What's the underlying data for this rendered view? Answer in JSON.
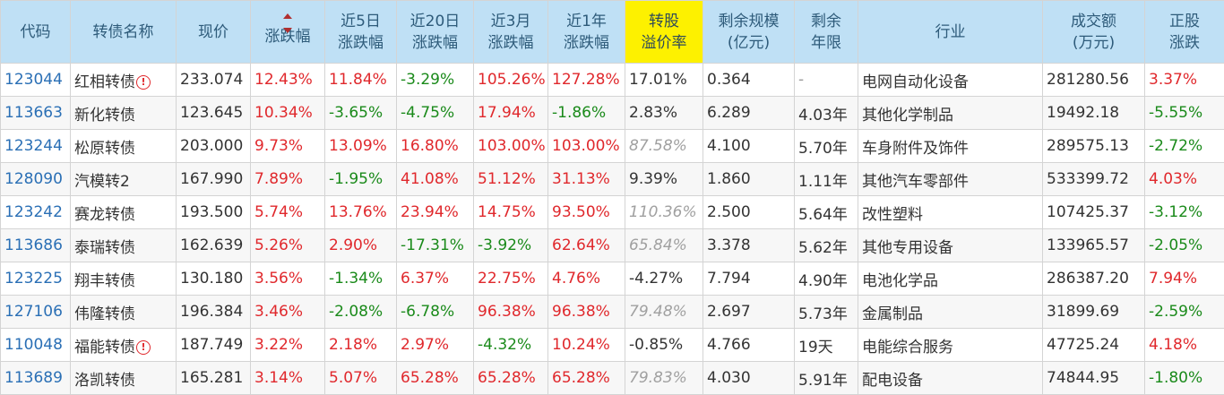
{
  "headers": [
    {
      "label": "代码",
      "lines": [
        "代码"
      ]
    },
    {
      "label": "转债名称",
      "lines": [
        "转债名称"
      ]
    },
    {
      "label": "现价",
      "lines": [
        "现价"
      ]
    },
    {
      "label": "涨跌幅",
      "lines": [
        "涨跌幅"
      ],
      "sorted": "desc"
    },
    {
      "label": "近5日涨跌幅",
      "lines": [
        "近5日",
        "涨跌幅"
      ]
    },
    {
      "label": "近20日涨跌幅",
      "lines": [
        "近20日",
        "涨跌幅"
      ]
    },
    {
      "label": "近3月涨跌幅",
      "lines": [
        "近3月",
        "涨跌幅"
      ]
    },
    {
      "label": "近1年涨跌幅",
      "lines": [
        "近1年",
        "涨跌幅"
      ]
    },
    {
      "label": "转股溢价率",
      "lines": [
        "转股",
        "溢价率"
      ],
      "highlight": "#fdf100"
    },
    {
      "label": "剩余规模(亿元)",
      "lines": [
        "剩余规模",
        "(亿元)"
      ]
    },
    {
      "label": "剩余年限",
      "lines": [
        "剩余",
        "年限"
      ]
    },
    {
      "label": "行业",
      "lines": [
        "行业"
      ]
    },
    {
      "label": "成交额(万元)",
      "lines": [
        "成交额",
        "(万元)"
      ]
    },
    {
      "label": "正股涨跌",
      "lines": [
        "正股",
        "涨跌"
      ]
    }
  ],
  "colors": {
    "up": "#e0282c",
    "down": "#1a8a1a",
    "code": "#2a6fb5",
    "muted": "#a0a0a0",
    "header_bg": "#bfe0f5"
  },
  "rows": [
    {
      "code": "123044",
      "name": "红相转债",
      "warn": true,
      "price": "233.074",
      "chg": "12.43%",
      "d5": "11.84%",
      "d20": "-3.29%",
      "m3": "105.26%",
      "y1": "127.28%",
      "premium": "17.01%",
      "premium_muted": false,
      "scale": "0.364",
      "years": "-",
      "industry": "电网自动化设备",
      "amount": "281280.56",
      "stock_chg": "3.37%"
    },
    {
      "code": "113663",
      "name": "新化转债",
      "warn": false,
      "price": "123.645",
      "chg": "10.34%",
      "d5": "-3.65%",
      "d20": "-4.75%",
      "m3": "17.94%",
      "y1": "-1.86%",
      "premium": "2.83%",
      "premium_muted": false,
      "scale": "6.289",
      "years": "4.03年",
      "industry": "其他化学制品",
      "amount": "19492.18",
      "stock_chg": "-5.55%"
    },
    {
      "code": "123244",
      "name": "松原转债",
      "warn": false,
      "price": "203.000",
      "chg": "9.73%",
      "d5": "13.09%",
      "d20": "16.80%",
      "m3": "103.00%",
      "y1": "103.00%",
      "premium": "87.58%",
      "premium_muted": true,
      "scale": "4.100",
      "years": "5.70年",
      "industry": "车身附件及饰件",
      "amount": "289575.13",
      "stock_chg": "-2.72%"
    },
    {
      "code": "128090",
      "name": "汽模转2",
      "warn": false,
      "price": "167.990",
      "chg": "7.89%",
      "d5": "-1.95%",
      "d20": "41.08%",
      "m3": "51.12%",
      "y1": "31.13%",
      "premium": "9.39%",
      "premium_muted": false,
      "scale": "1.860",
      "years": "1.11年",
      "industry": "其他汽车零部件",
      "amount": "533399.72",
      "stock_chg": "4.03%"
    },
    {
      "code": "123242",
      "name": "赛龙转债",
      "warn": false,
      "price": "193.500",
      "chg": "5.74%",
      "d5": "13.76%",
      "d20": "23.94%",
      "m3": "14.75%",
      "y1": "93.50%",
      "premium": "110.36%",
      "premium_muted": true,
      "scale": "2.500",
      "years": "5.64年",
      "industry": "改性塑料",
      "amount": "107425.37",
      "stock_chg": "-3.12%"
    },
    {
      "code": "113686",
      "name": "泰瑞转债",
      "warn": false,
      "price": "162.639",
      "chg": "5.26%",
      "d5": "2.90%",
      "d20": "-17.31%",
      "m3": "-3.92%",
      "y1": "62.64%",
      "premium": "65.84%",
      "premium_muted": true,
      "scale": "3.378",
      "years": "5.62年",
      "industry": "其他专用设备",
      "amount": "133965.57",
      "stock_chg": "-2.05%"
    },
    {
      "code": "123225",
      "name": "翔丰转债",
      "warn": false,
      "price": "130.180",
      "chg": "3.56%",
      "d5": "-1.34%",
      "d20": "6.37%",
      "m3": "22.75%",
      "y1": "4.76%",
      "premium": "-4.27%",
      "premium_muted": false,
      "scale": "7.794",
      "years": "4.90年",
      "industry": "电池化学品",
      "amount": "286387.20",
      "stock_chg": "7.94%"
    },
    {
      "code": "127106",
      "name": "伟隆转债",
      "warn": false,
      "price": "196.384",
      "chg": "3.46%",
      "d5": "-2.08%",
      "d20": "-6.78%",
      "m3": "96.38%",
      "y1": "96.38%",
      "premium": "79.48%",
      "premium_muted": true,
      "scale": "2.697",
      "years": "5.73年",
      "industry": "金属制品",
      "amount": "31899.69",
      "stock_chg": "-2.59%"
    },
    {
      "code": "110048",
      "name": "福能转债",
      "warn": true,
      "price": "187.749",
      "chg": "3.22%",
      "d5": "2.18%",
      "d20": "2.97%",
      "m3": "-4.32%",
      "y1": "10.24%",
      "premium": "-0.85%",
      "premium_muted": false,
      "scale": "4.766",
      "years": "19天",
      "industry": "电能综合服务",
      "amount": "47725.24",
      "stock_chg": "4.18%"
    },
    {
      "code": "113689",
      "name": "洛凯转债",
      "warn": false,
      "price": "165.281",
      "chg": "3.14%",
      "d5": "5.07%",
      "d20": "65.28%",
      "m3": "65.28%",
      "y1": "65.28%",
      "premium": "79.83%",
      "premium_muted": true,
      "scale": "4.030",
      "years": "5.91年",
      "industry": "配电设备",
      "amount": "74844.95",
      "stock_chg": "-1.80%"
    }
  ]
}
